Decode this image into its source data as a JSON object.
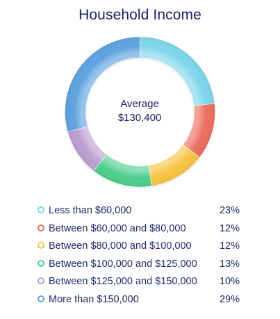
{
  "chart_data": {
    "type": "pie",
    "title": "Household Income",
    "center_label": "Average",
    "center_value": "$130,400",
    "categories": [
      "Less than $60,000",
      "Between $60,000 and $80,000",
      "Between $80,000 and $100,000",
      "Between $100,000 and $125,000",
      "Between $125,000 and $150,000",
      "More than $150,000"
    ],
    "values": [
      23,
      12,
      12,
      13,
      10,
      29
    ],
    "value_labels": [
      "23%",
      "12%",
      "12%",
      "13%",
      "10%",
      "29%"
    ],
    "colors": [
      "#7fd6ec",
      "#ec6f61",
      "#f7c544",
      "#4fcf8e",
      "#bb9fd1",
      "#5fa3e0"
    ],
    "legend_position": "bottom"
  }
}
